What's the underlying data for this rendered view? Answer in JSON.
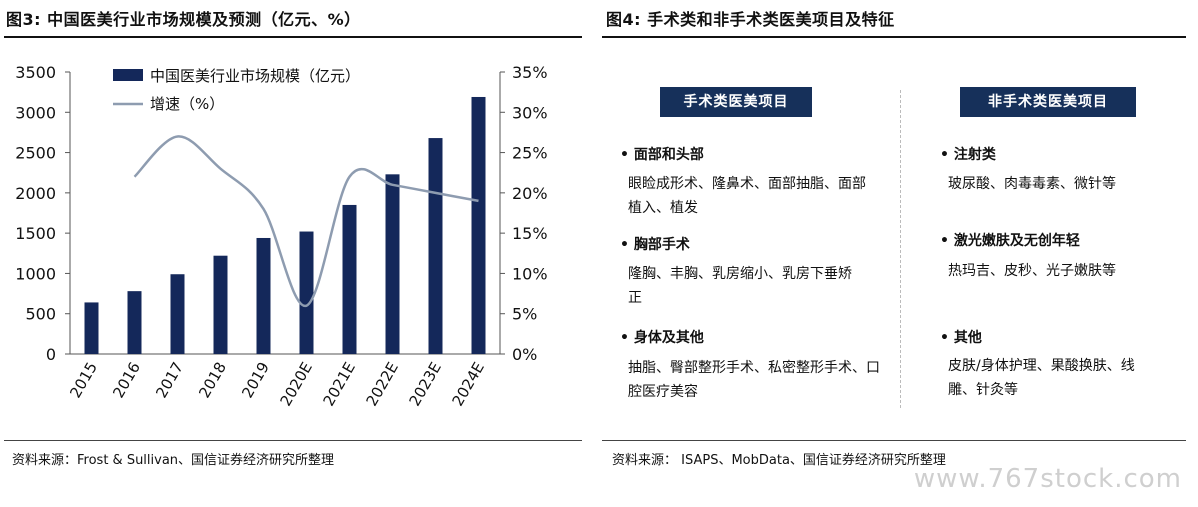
{
  "fig3": {
    "title": "图3: 中国医美行业市场规模及预测（亿元、%）",
    "source": "资料来源：Frost & Sullivan、国信证券经济研究所整理"
  },
  "fig4": {
    "title": "图4: 手术类和非手术类医美项目及特征",
    "source": "资料来源： ISAPS、MobData、国信证券经济研究所整理",
    "surgical_label": "手术类医美项目",
    "nonsurgical_label": "非手术类医美项目",
    "surgical": [
      {
        "head": "• 面部和头部",
        "body": "眼睑成形术、隆鼻术、面部抽脂、面部植入、植发"
      },
      {
        "head": "• 胸部手术",
        "body": "隆胸、丰胸、乳房缩小、乳房下垂矫正"
      },
      {
        "head": "• 身体及其他",
        "body": "抽脂、臀部整形手术、私密整形手术、口腔医疗美容"
      }
    ],
    "nonsurgical": [
      {
        "head": "• 注射类",
        "body": "玻尿酸、肉毒毒素、微针等"
      },
      {
        "head": "• 激光嫩肤及无创年轻",
        "body": "热玛吉、皮秒、光子嫩肤等"
      },
      {
        "head": "• 其他",
        "body": "皮肤/身体护理、果酸换肤、线雕、针灸等"
      }
    ]
  },
  "watermark": "www.767stock.com",
  "colors": {
    "bar": "#14285a",
    "line": "#8e9cb0",
    "badge": "#16305a"
  },
  "chart_data": {
    "type": "bar",
    "categories": [
      "2015",
      "2016",
      "2017",
      "2018",
      "2019",
      "2020E",
      "2021E",
      "2022E",
      "2023E",
      "2024E"
    ],
    "series": [
      {
        "name": "中国医美行业市场规模（亿元）",
        "type": "bar",
        "axis": "left",
        "values": [
          640,
          780,
          990,
          1220,
          1440,
          1520,
          1850,
          2230,
          2680,
          3190
        ]
      },
      {
        "name": "增速（%）",
        "type": "line",
        "axis": "right",
        "values": [
          null,
          22,
          27,
          23,
          18,
          6,
          22,
          21,
          20,
          19
        ]
      }
    ],
    "y_left": {
      "min": 0,
      "max": 3500,
      "ticks": [
        "0",
        "500",
        "1000",
        "1500",
        "2000",
        "2500",
        "3000",
        "3500"
      ]
    },
    "y_right": {
      "min": 0,
      "max": 35,
      "ticks": [
        "0%",
        "5%",
        "10%",
        "15%",
        "20%",
        "25%",
        "30%",
        "35%"
      ]
    },
    "legend": "top-left",
    "grid": false
  }
}
